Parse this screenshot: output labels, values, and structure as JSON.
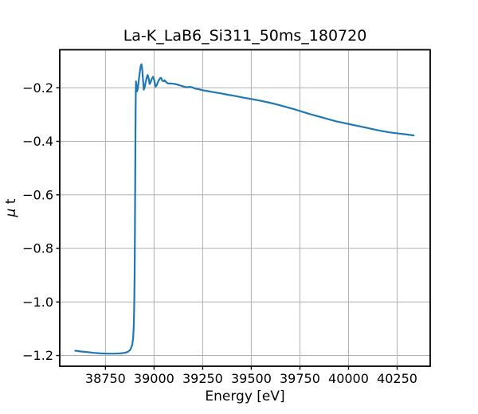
{
  "figure": {
    "background": "#ffffff"
  },
  "chart_data": {
    "type": "line",
    "title": "La-K_LaB6_Si311_50ms_180720",
    "xlabel": "Energy [eV]",
    "ylabel": "μ t",
    "ylabel_symbol": "μ",
    "ylabel_text": " t",
    "xlim": [
      38515,
      40420
    ],
    "ylim": [
      -1.24,
      -0.058
    ],
    "grid": true,
    "legend": "none",
    "line_color": "#1f77b4",
    "grid_color": "#b0b0b0",
    "axis_color": "#000000",
    "x_ticks": [
      38750,
      39000,
      39250,
      39500,
      39750,
      40000,
      40250
    ],
    "x_tick_labels": [
      "38750",
      "39000",
      "39250",
      "39500",
      "39750",
      "40000",
      "40250"
    ],
    "y_ticks": [
      -0.2,
      -0.4,
      -0.6,
      -0.8,
      -1.0,
      -1.2
    ],
    "y_tick_labels": [
      "−0.2",
      "−0.4",
      "−0.6",
      "−0.8",
      "−1.0",
      "−1.2"
    ],
    "series": [
      {
        "name": "mu_t_spectrum",
        "points": [
          [
            38595,
            -1.182
          ],
          [
            38625,
            -1.185
          ],
          [
            38655,
            -1.187
          ],
          [
            38690,
            -1.19
          ],
          [
            38725,
            -1.192
          ],
          [
            38760,
            -1.193
          ],
          [
            38795,
            -1.193
          ],
          [
            38825,
            -1.192
          ],
          [
            38850,
            -1.19
          ],
          [
            38866,
            -1.186
          ],
          [
            38878,
            -1.178
          ],
          [
            38888,
            -1.16
          ],
          [
            38893,
            -1.13
          ],
          [
            38896,
            -1.08
          ],
          [
            38898,
            -1.01
          ],
          [
            38900,
            -0.9
          ],
          [
            38901,
            -0.8
          ],
          [
            38902,
            -0.68
          ],
          [
            38903,
            -0.55
          ],
          [
            38904,
            -0.42
          ],
          [
            38905,
            -0.3
          ],
          [
            38906,
            -0.215
          ],
          [
            38907,
            -0.176
          ],
          [
            38910,
            -0.196
          ],
          [
            38913,
            -0.213
          ],
          [
            38917,
            -0.2
          ],
          [
            38921,
            -0.175
          ],
          [
            38926,
            -0.145
          ],
          [
            38931,
            -0.12
          ],
          [
            38935,
            -0.112
          ],
          [
            38939,
            -0.13
          ],
          [
            38943,
            -0.168
          ],
          [
            38947,
            -0.207
          ],
          [
            38951,
            -0.2
          ],
          [
            38956,
            -0.182
          ],
          [
            38962,
            -0.162
          ],
          [
            38967,
            -0.152
          ],
          [
            38972,
            -0.165
          ],
          [
            38977,
            -0.186
          ],
          [
            38982,
            -0.18
          ],
          [
            38988,
            -0.167
          ],
          [
            38995,
            -0.159
          ],
          [
            39001,
            -0.172
          ],
          [
            39008,
            -0.196
          ],
          [
            39014,
            -0.19
          ],
          [
            39022,
            -0.175
          ],
          [
            39030,
            -0.165
          ],
          [
            39036,
            -0.163
          ],
          [
            39043,
            -0.174
          ],
          [
            39050,
            -0.176
          ],
          [
            39055,
            -0.172
          ],
          [
            39062,
            -0.179
          ],
          [
            39072,
            -0.184
          ],
          [
            39085,
            -0.184
          ],
          [
            39100,
            -0.185
          ],
          [
            39115,
            -0.187
          ],
          [
            39130,
            -0.19
          ],
          [
            39145,
            -0.194
          ],
          [
            39160,
            -0.197
          ],
          [
            39172,
            -0.198
          ],
          [
            39185,
            -0.196
          ],
          [
            39198,
            -0.199
          ],
          [
            39210,
            -0.203
          ],
          [
            39228,
            -0.205
          ],
          [
            39250,
            -0.209
          ],
          [
            39280,
            -0.213
          ],
          [
            39310,
            -0.217
          ],
          [
            39345,
            -0.221
          ],
          [
            39380,
            -0.226
          ],
          [
            39420,
            -0.231
          ],
          [
            39460,
            -0.237
          ],
          [
            39500,
            -0.242
          ],
          [
            39545,
            -0.248
          ],
          [
            39590,
            -0.255
          ],
          [
            39635,
            -0.263
          ],
          [
            39680,
            -0.272
          ],
          [
            39725,
            -0.281
          ],
          [
            39760,
            -0.289
          ],
          [
            39800,
            -0.298
          ],
          [
            39845,
            -0.307
          ],
          [
            39890,
            -0.316
          ],
          [
            39935,
            -0.325
          ],
          [
            39980,
            -0.332
          ],
          [
            40025,
            -0.339
          ],
          [
            40070,
            -0.346
          ],
          [
            40115,
            -0.353
          ],
          [
            40160,
            -0.36
          ],
          [
            40205,
            -0.366
          ],
          [
            40250,
            -0.37
          ],
          [
            40295,
            -0.374
          ],
          [
            40335,
            -0.378
          ]
        ]
      }
    ]
  }
}
